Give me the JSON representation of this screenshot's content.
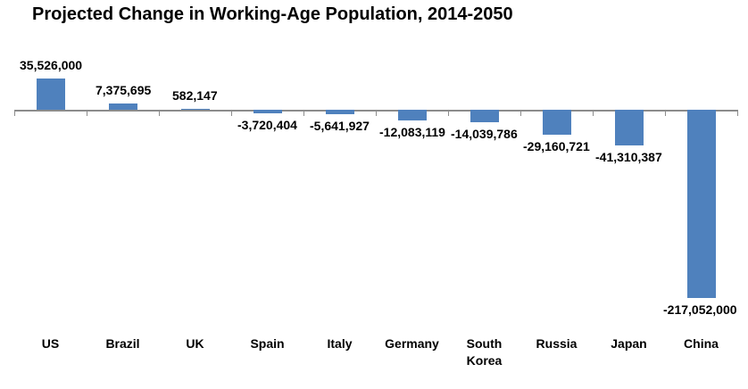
{
  "chart_data": {
    "type": "bar",
    "title": "Projected Change in Working-Age Population, 2014-2050",
    "categories": [
      "US",
      "Brazil",
      "UK",
      "Spain",
      "Italy",
      "Germany",
      "South Korea",
      "Russia",
      "Japan",
      "China"
    ],
    "values": [
      35526000,
      7375695,
      582147,
      -3720404,
      -5641927,
      -12083119,
      -14039786,
      -29160721,
      -41310387,
      -217052000
    ],
    "value_labels": [
      "35,526,000",
      "7,375,695",
      "582,147",
      "-3,720,404",
      "-5,641,927",
      "-12,083,119",
      "-14,039,786",
      "-29,160,721",
      "-41,310,387",
      "-217,052,000"
    ],
    "xlabel": "",
    "ylabel": "",
    "ylim": [
      -230000000,
      45000000
    ],
    "grid": false,
    "legend": null,
    "bar_color": "#4F81BD",
    "axis_color": "#8C8C8C",
    "text_color": "#000000"
  }
}
